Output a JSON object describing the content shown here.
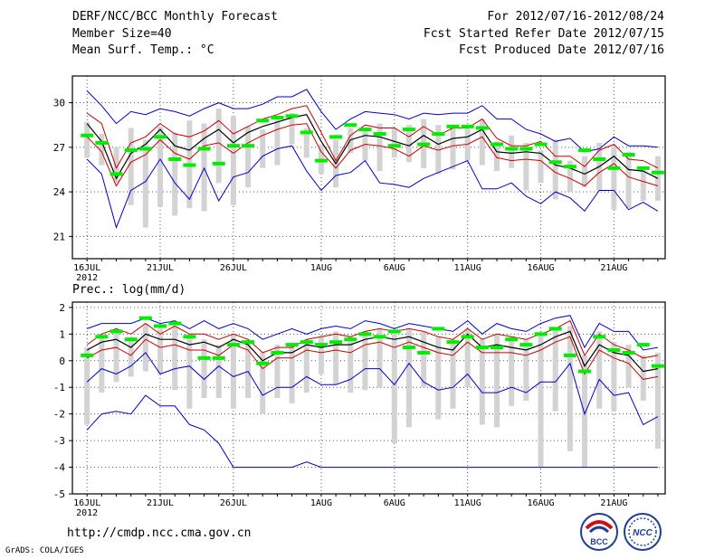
{
  "header": {
    "title": "DERF/NCC/BCC Monthly Forecast",
    "member_size": "Member Size=40",
    "variable": "Mean Surf. Temp.: °C",
    "forecast_period": "For 2012/07/16-2012/08/24",
    "start_refer": "Fcst Started Refer Date 2012/07/15",
    "produced": "Fcst Produced Date 2012/07/16"
  },
  "footer": {
    "url": "http://cmdp.ncc.cma.gov.cn",
    "grads": "GrADS: COLA/IGES",
    "logo_bcc": "BCC",
    "logo_ncc": "NCC"
  },
  "colors": {
    "frame": "#000000",
    "grid": "#555555",
    "box": "#d3d3d3",
    "mean_member": "#00ee00",
    "envelope": "#0000cc",
    "spread": "#cc0000",
    "median": "#000000"
  },
  "chart_data": [
    {
      "type": "line",
      "name": "temperature",
      "title": "Mean Surf. Temp.: °C",
      "ylabel": "°C",
      "ylim": [
        19.5,
        31.8
      ],
      "yticks": [
        21,
        24,
        27,
        30
      ],
      "ytick_labels": [
        "21",
        "24",
        "27",
        "30"
      ],
      "xlim": [
        -1,
        39.5
      ],
      "xticks": [
        0,
        5,
        10,
        16,
        21,
        26,
        31,
        36
      ],
      "xtick_labels": [
        "16JUL",
        "21JUL",
        "26JUL",
        "1AUG",
        "6AUG",
        "11AUG",
        "16AUG",
        "21AUG"
      ],
      "year_label": "2012",
      "grid": true,
      "days": 40,
      "series": [
        {
          "name": "max",
          "values": [
            30.8,
            29.8,
            28.6,
            29.4,
            29.2,
            29.6,
            29.4,
            29.1,
            29.6,
            30,
            29.6,
            29.6,
            29.9,
            30.4,
            30.4,
            30.9,
            29.4,
            28.2,
            28.9,
            29.4,
            29.3,
            29.2,
            28.9,
            29.3,
            29.2,
            29.3,
            29.3,
            29.8,
            28.9,
            28.9,
            28.2,
            27.9,
            27.4,
            27.6,
            26.7,
            26.9,
            27.7,
            27.1,
            27.1,
            27
          ]
        },
        {
          "name": "upper",
          "values": [
            29.3,
            28.6,
            25.6,
            27.3,
            27.7,
            28.6,
            27.9,
            27.7,
            28.1,
            28.8,
            27.9,
            28.4,
            28.9,
            29.2,
            29.6,
            29.8,
            28,
            26.1,
            27.8,
            28.5,
            28.3,
            28.3,
            27.7,
            28.4,
            27.8,
            28.3,
            28.3,
            28.9,
            27.6,
            27.1,
            27.1,
            27.4,
            26.4,
            26.4,
            25.7,
            26.8,
            27.2,
            26.2,
            26.1,
            25.6
          ]
        },
        {
          "name": "median",
          "values": [
            28.6,
            27.4,
            24.9,
            26.6,
            27.2,
            28.2,
            27.1,
            26.8,
            27.6,
            28.2,
            27.3,
            28,
            28.4,
            28.7,
            29,
            29.2,
            27.4,
            25.9,
            27.5,
            27.8,
            27.7,
            27.4,
            27.1,
            27.8,
            27.2,
            27.6,
            27.7,
            28.2,
            26.7,
            26.6,
            26.7,
            26.6,
            25.8,
            25.6,
            25.2,
            25.7,
            26.4,
            25.5,
            25.4,
            24.9
          ]
        },
        {
          "name": "lower",
          "values": [
            27.7,
            26.7,
            24.4,
            26,
            26.5,
            27.5,
            26.6,
            26.2,
            27.1,
            27.3,
            26.6,
            27.3,
            27.8,
            28.2,
            28.5,
            28.6,
            26.7,
            25.6,
            26.8,
            27.2,
            27.1,
            26.9,
            26.4,
            27.1,
            26.8,
            27.1,
            27.2,
            27.7,
            26.3,
            26.1,
            26.2,
            26.1,
            25.3,
            24.9,
            24.4,
            25.3,
            25.9,
            25,
            24.7,
            24.4
          ]
        },
        {
          "name": "min",
          "values": [
            26.2,
            25.2,
            21.6,
            24.1,
            24.7,
            26.2,
            24.6,
            23.5,
            25.6,
            23.4,
            25,
            25.3,
            26.4,
            26.9,
            27.1,
            25.4,
            24.1,
            25.1,
            25.3,
            26.1,
            24.6,
            24.5,
            24.3,
            24.9,
            25.3,
            25.7,
            26.1,
            24.2,
            24.2,
            24.6,
            23.7,
            23.2,
            24,
            23.6,
            22.7,
            24.1,
            24.1,
            22.8,
            23.3,
            22.7
          ]
        },
        {
          "name": "mean_member",
          "values": [
            27.8,
            27.3,
            25.2,
            26.8,
            26.9,
            27.7,
            26.2,
            25.8,
            26.9,
            25.9,
            27.1,
            27.1,
            28.8,
            29,
            29.1,
            28,
            26.1,
            27.7,
            28.5,
            28.2,
            27.9,
            27.1,
            28.2,
            27.2,
            27.9,
            28.4,
            28.4,
            28.3,
            27.2,
            26.9,
            26.9,
            27.2,
            26,
            25.7,
            26.8,
            26.2,
            25.6,
            26.5,
            25.6,
            25.3
          ]
        },
        {
          "name": "box_top",
          "values": [
            28.7,
            27.9,
            27,
            28.3,
            27.5,
            28.4,
            28,
            28.8,
            28.6,
            29.6,
            29.1,
            28.4,
            28.2,
            29.1,
            29.3,
            28.3,
            27.2,
            27.5,
            28.3,
            28.3,
            28.6,
            28.3,
            28.5,
            28.9,
            28.5,
            28.4,
            28.5,
            28.9,
            27.4,
            27.8,
            27.3,
            26.8,
            27.5,
            26.1,
            26.4,
            27.3,
            27.1,
            26.7,
            25.5,
            26.4
          ]
        },
        {
          "name": "box_bottom",
          "values": [
            26.3,
            25.8,
            24.6,
            23.1,
            21.6,
            23,
            22.4,
            22.9,
            22.7,
            24.6,
            23.1,
            24.3,
            25.6,
            25.8,
            27.2,
            26.3,
            25.2,
            24.3,
            26.6,
            26.1,
            25.4,
            26.3,
            26,
            25.6,
            25.2,
            25.5,
            26.1,
            25.8,
            25.4,
            25.6,
            24.1,
            24.6,
            23.5,
            24,
            24.3,
            24.1,
            22.8,
            22.9,
            23.4,
            23.4
          ]
        }
      ]
    },
    {
      "type": "line",
      "name": "precipitation",
      "title": "Prec.: log(mm/d)",
      "ylabel": "log(mm/d)",
      "ylim": [
        -5,
        2.2
      ],
      "yticks": [
        -5,
        -4,
        -3,
        -2,
        -1,
        0,
        1,
        2
      ],
      "ytick_labels": [
        "-5",
        "-4",
        "-3",
        "-2",
        "-1",
        "0",
        "1",
        "2"
      ],
      "xlim": [
        -1,
        39.5
      ],
      "xticks": [
        0,
        5,
        10,
        16,
        21,
        26,
        31,
        36
      ],
      "xtick_labels": [
        "16JUL",
        "21JUL",
        "26JUL",
        "1AUG",
        "6AUG",
        "11AUG",
        "16AUG",
        "21AUG"
      ],
      "year_label": "2012",
      "grid": true,
      "days": 40,
      "series": [
        {
          "name": "max",
          "values": [
            1.2,
            1.4,
            1.4,
            1.4,
            1.6,
            1.4,
            1.5,
            1.2,
            1.5,
            1.2,
            1.4,
            1.2,
            0.8,
            1.0,
            1.2,
            1.0,
            1.2,
            1.3,
            1.2,
            1.5,
            1.4,
            1.2,
            1.4,
            1.3,
            1.2,
            1.1,
            1.5,
            1.0,
            1.4,
            1.2,
            1.1,
            1.4,
            1.6,
            1.7,
            0.5,
            1.4,
            1.1,
            1.1,
            0.4,
            0.5
          ]
        },
        {
          "name": "upper",
          "values": [
            0.6,
            1.0,
            1.2,
            1.0,
            1.4,
            1.0,
            1.3,
            1.0,
            1.0,
            0.8,
            1.0,
            0.8,
            0.3,
            0.5,
            0.5,
            0.8,
            0.9,
            1.0,
            0.9,
            1.1,
            1.2,
            1.1,
            1.2,
            1.1,
            0.9,
            0.8,
            1.2,
            0.8,
            1.0,
            0.9,
            0.8,
            1.0,
            1.2,
            1.5,
            0.2,
            1.0,
            0.6,
            0.4,
            0.1,
            0.2
          ]
        },
        {
          "name": "median",
          "values": [
            0.4,
            0.7,
            0.8,
            0.5,
            1.0,
            0.8,
            0.8,
            0.6,
            0.7,
            0.5,
            0.8,
            0.6,
            0.0,
            0.3,
            0.3,
            0.6,
            0.5,
            0.6,
            0.6,
            0.8,
            0.9,
            0.8,
            0.9,
            0.7,
            0.5,
            0.4,
            1.0,
            0.5,
            0.6,
            0.5,
            0.4,
            0.6,
            0.9,
            1.1,
            -0.2,
            0.6,
            0.3,
            0.2,
            -0.4,
            -0.3
          ]
        },
        {
          "name": "lower",
          "values": [
            0.1,
            0.4,
            0.5,
            0.2,
            0.8,
            0.5,
            0.6,
            0.4,
            0.4,
            0.2,
            0.6,
            0.4,
            -0.3,
            0.1,
            0.1,
            0.4,
            0.3,
            0.4,
            0.3,
            0.6,
            0.7,
            0.5,
            0.7,
            0.5,
            0.3,
            0.2,
            0.7,
            0.3,
            0.3,
            0.3,
            0.2,
            0.4,
            0.7,
            0.9,
            -0.5,
            0.4,
            0.1,
            -0.1,
            -0.7,
            -0.6
          ]
        },
        {
          "name": "min",
          "values": [
            -0.8,
            -0.3,
            -0.5,
            -0.2,
            0.3,
            -0.5,
            -0.3,
            -0.2,
            -0.7,
            -0.2,
            -0.6,
            -0.4,
            -1.3,
            -1.0,
            -1.0,
            -0.6,
            -0.9,
            -0.9,
            -0.7,
            -0.3,
            -0.3,
            -0.9,
            -0.1,
            -0.8,
            -1.1,
            -1.0,
            -0.5,
            -1.2,
            -1.2,
            -1.0,
            -1.2,
            -0.8,
            -0.8,
            -0.1,
            -2.0,
            -0.7,
            -1.3,
            -1.2,
            -2.4,
            -2.1
          ]
        },
        {
          "name": "lowest",
          "values": [
            -2.6,
            -2.0,
            -1.9,
            -2.0,
            -1.3,
            -1.7,
            -1.7,
            -2.4,
            -2.6,
            -3.1,
            -4.0,
            -4.0,
            -4.0,
            -4.0,
            -4.0,
            -3.8,
            -4.0,
            -4.0,
            -4.0,
            -4.0,
            -4.0,
            -4.0,
            -4.0,
            -4.0,
            -4.0,
            -4.0,
            -4.0,
            -4.0,
            -4.0,
            -4.0,
            -4.0,
            -4.0,
            -4.0,
            -4.0,
            -4.0,
            -4.0,
            -4.0,
            -4.0,
            -4.0,
            -4.0
          ]
        },
        {
          "name": "mean_member",
          "values": [
            0.2,
            0.9,
            1.1,
            0.8,
            1.6,
            1.3,
            1.4,
            0.9,
            0.1,
            0.1,
            0.6,
            0.7,
            -0.1,
            0.3,
            0.6,
            0.7,
            0.6,
            0.7,
            0.8,
            1.0,
            0.9,
            1.1,
            0.5,
            0.3,
            1.2,
            0.7,
            0.9,
            0.5,
            0.5,
            0.8,
            0.6,
            1.0,
            1.2,
            0.2,
            -0.4,
            0.9,
            0.4,
            0.3,
            0.6,
            -0.2
          ]
        },
        {
          "name": "box_top",
          "values": [
            0.5,
            1.0,
            1.1,
            0.9,
            1.4,
            1.2,
            1.3,
            1.0,
            0.8,
            0.6,
            1.0,
            0.8,
            0.3,
            0.6,
            0.6,
            0.8,
            0.9,
            1.1,
            0.9,
            1.1,
            1.2,
            1.1,
            1.2,
            1.1,
            0.9,
            0.8,
            1.2,
            0.8,
            1.0,
            0.9,
            0.8,
            1.0,
            1.2,
            1.3,
            0.2,
            1.1,
            0.7,
            0.6,
            0.2,
            0.3
          ]
        },
        {
          "name": "box_bottom",
          "values": [
            -2.4,
            -1.2,
            -0.8,
            -0.6,
            -0.4,
            -0.5,
            -1.1,
            -1.8,
            -1.4,
            -1.4,
            -1.8,
            -1.4,
            -2.0,
            -1.4,
            -1.6,
            -1.2,
            -0.5,
            -0.9,
            -1.2,
            -1.1,
            -1.0,
            -3.1,
            -2.5,
            -1.0,
            -2.2,
            -1.8,
            -1.0,
            -2.4,
            -2.5,
            -1.7,
            -1.5,
            -4.0,
            -1.9,
            -3.4,
            -4.0,
            -1.8,
            -1.9,
            -1.0,
            -1.5,
            -3.3
          ]
        }
      ]
    }
  ]
}
